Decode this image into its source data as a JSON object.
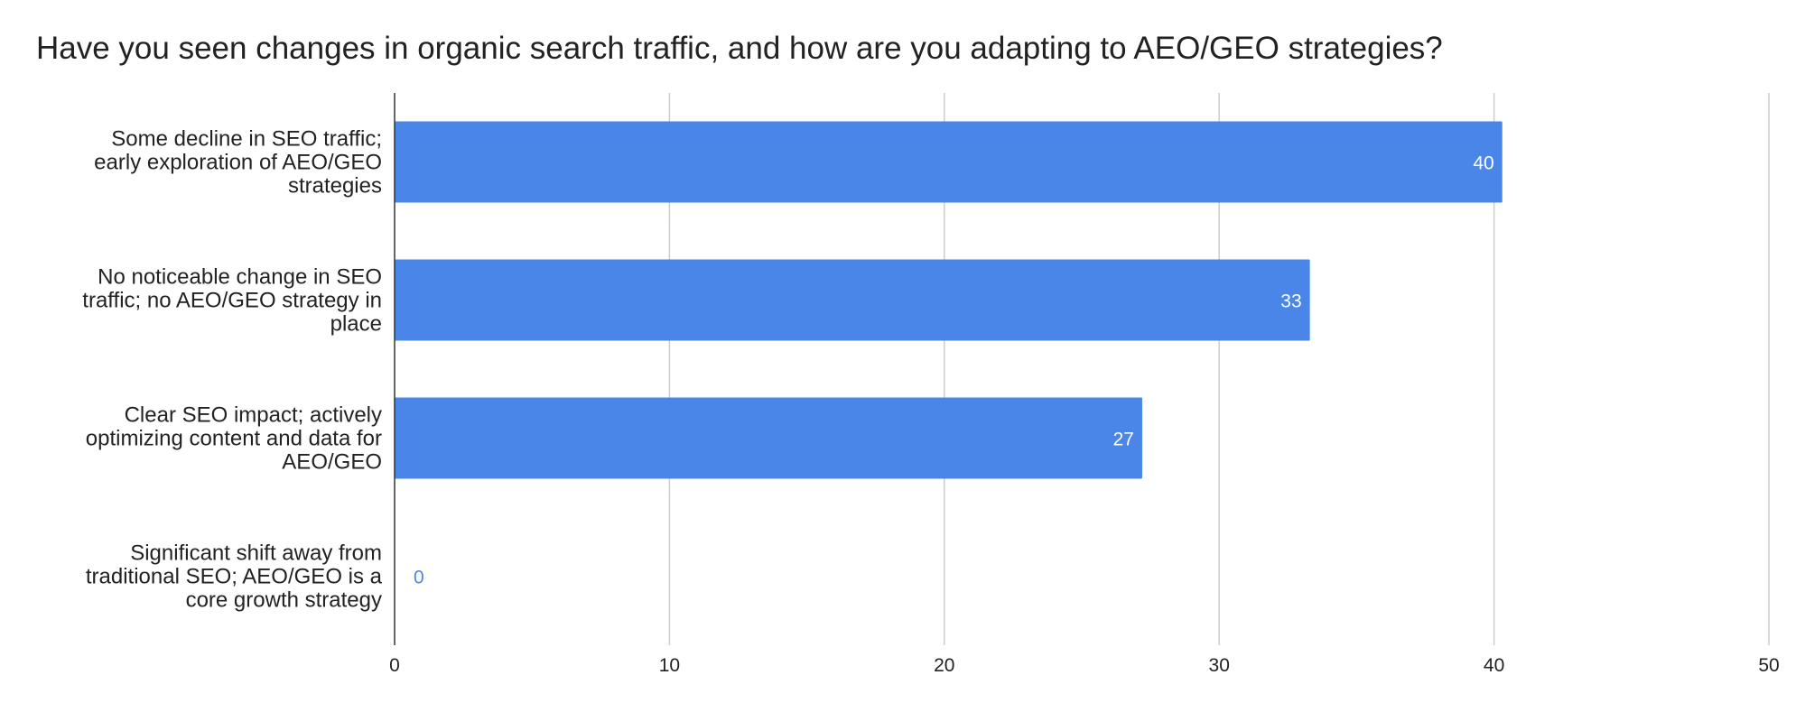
{
  "chart_data": {
    "type": "bar",
    "orientation": "horizontal",
    "title": "Have you seen changes in organic search traffic, and how are you adapting to AEO/GEO strategies?",
    "categories": [
      [
        "Some decline in SEO traffic;",
        "early exploration of AEO/GEO",
        "strategies"
      ],
      [
        "No noticeable change in SEO",
        "traffic; no AEO/GEO strategy in",
        "place"
      ],
      [
        "Clear SEO impact; actively",
        "optimizing content and data for",
        "AEO/GEO"
      ],
      [
        "Significant shift away from",
        "traditional SEO; AEO/GEO is a",
        "core growth strategy"
      ]
    ],
    "values": [
      40.3,
      33.3,
      27.2,
      0
    ],
    "value_labels": [
      "40",
      "33",
      "27",
      "0"
    ],
    "xlim": [
      0,
      50
    ],
    "xticks": [
      "0",
      "10",
      "20",
      "30",
      "40",
      "50"
    ],
    "grid": true,
    "legend": "none",
    "colors": {
      "bar": "#4a86e8",
      "value_inside": "#ffffff",
      "value_outside": "#4a86e8",
      "grid": "#cccccc",
      "axis": "#333333"
    }
  }
}
